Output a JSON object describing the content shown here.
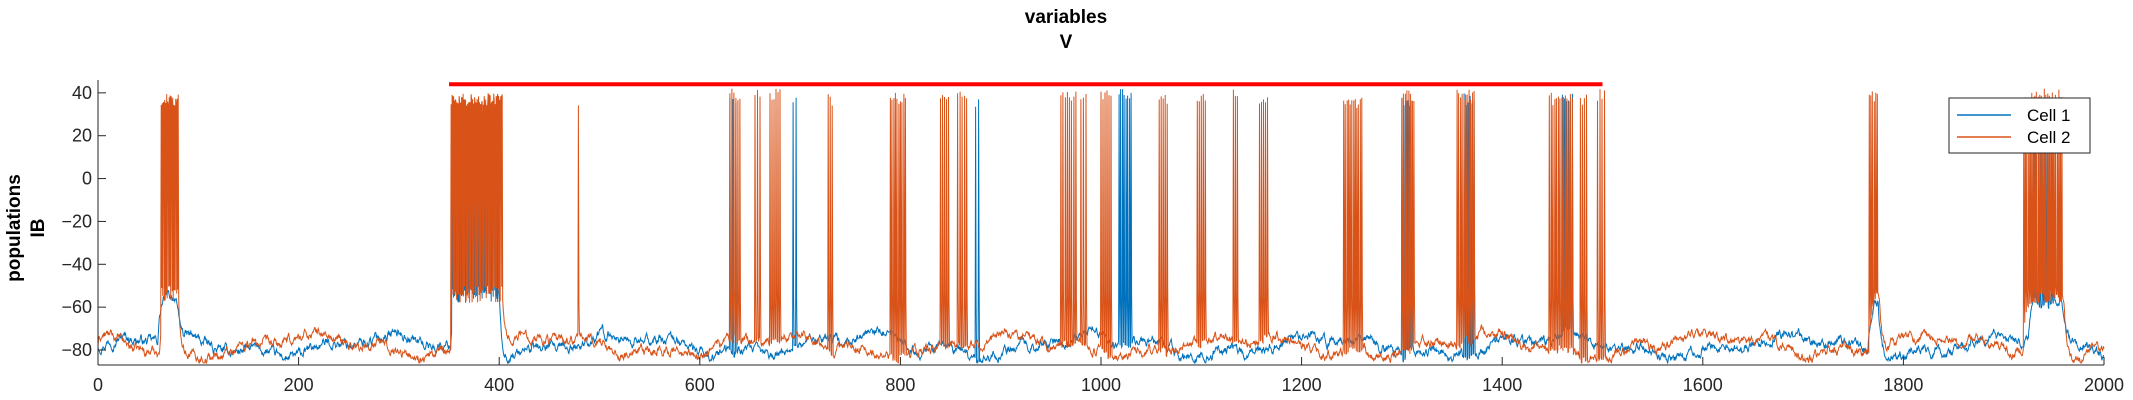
{
  "chart_data": {
    "type": "line",
    "title": "variables",
    "subtitle": "V",
    "ylabel_line1": "populations",
    "ylabel_line2": "IB",
    "xlabel": "",
    "xlim": [
      0,
      2000
    ],
    "ylim": [
      -87,
      46
    ],
    "xticks": [
      0,
      200,
      400,
      600,
      800,
      1000,
      1200,
      1400,
      1600,
      1800,
      2000
    ],
    "yticks": [
      -80,
      -60,
      -40,
      -20,
      0,
      20,
      40
    ],
    "grid": false,
    "legend_position": "top-right",
    "baseline": -78,
    "noise_amplitude": 4,
    "series": [
      {
        "name": "Cell 1",
        "color": "#0072BD",
        "depolarized_segments": [
          {
            "start": 60,
            "end": 78,
            "level": -55
          },
          {
            "start": 352,
            "end": 400,
            "level": -53
          },
          {
            "start": 1765,
            "end": 1775,
            "level": -58
          },
          {
            "start": 1925,
            "end": 1958,
            "level": -57
          }
        ],
        "spike_bursts": [
          {
            "start": 353,
            "end": 398,
            "count": 50,
            "peak": 32
          },
          {
            "start": 630,
            "end": 636,
            "count": 3,
            "peak": 40
          },
          {
            "start": 693,
            "end": 696,
            "count": 2,
            "peak": 40
          },
          {
            "start": 875,
            "end": 878,
            "count": 2,
            "peak": 38
          },
          {
            "start": 1018,
            "end": 1030,
            "count": 8,
            "peak": 42
          },
          {
            "start": 1300,
            "end": 1310,
            "count": 6,
            "peak": 40
          },
          {
            "start": 1362,
            "end": 1372,
            "count": 6,
            "peak": 40
          },
          {
            "start": 1460,
            "end": 1470,
            "count": 6,
            "peak": 40
          },
          {
            "start": 1930,
            "end": 1950,
            "count": 10,
            "peak": 38
          }
        ]
      },
      {
        "name": "Cell 2",
        "color": "#D95319",
        "depolarized_segments": [
          {
            "start": 62,
            "end": 80,
            "level": -55
          },
          {
            "start": 352,
            "end": 403,
            "level": -55
          },
          {
            "start": 1766,
            "end": 1776,
            "level": -55
          },
          {
            "start": 1920,
            "end": 1960,
            "level": -55
          }
        ],
        "spike_bursts": [
          {
            "start": 63,
            "end": 80,
            "count": 20,
            "peak": 40
          },
          {
            "start": 352,
            "end": 403,
            "count": 60,
            "peak": 40
          },
          {
            "start": 479,
            "end": 480,
            "count": 1,
            "peak": 40
          },
          {
            "start": 630,
            "end": 640,
            "count": 6,
            "peak": 42
          },
          {
            "start": 655,
            "end": 660,
            "count": 3,
            "peak": 42
          },
          {
            "start": 670,
            "end": 680,
            "count": 6,
            "peak": 42
          },
          {
            "start": 728,
            "end": 732,
            "count": 3,
            "peak": 40
          },
          {
            "start": 790,
            "end": 805,
            "count": 10,
            "peak": 40
          },
          {
            "start": 840,
            "end": 848,
            "count": 5,
            "peak": 40
          },
          {
            "start": 857,
            "end": 866,
            "count": 5,
            "peak": 42
          },
          {
            "start": 960,
            "end": 975,
            "count": 8,
            "peak": 42
          },
          {
            "start": 980,
            "end": 985,
            "count": 3,
            "peak": 40
          },
          {
            "start": 1000,
            "end": 1010,
            "count": 6,
            "peak": 42
          },
          {
            "start": 1058,
            "end": 1066,
            "count": 5,
            "peak": 40
          },
          {
            "start": 1096,
            "end": 1104,
            "count": 5,
            "peak": 40
          },
          {
            "start": 1132,
            "end": 1136,
            "count": 3,
            "peak": 42
          },
          {
            "start": 1158,
            "end": 1166,
            "count": 5,
            "peak": 40
          },
          {
            "start": 1242,
            "end": 1260,
            "count": 12,
            "peak": 38
          },
          {
            "start": 1300,
            "end": 1312,
            "count": 8,
            "peak": 42
          },
          {
            "start": 1355,
            "end": 1372,
            "count": 11,
            "peak": 42
          },
          {
            "start": 1447,
            "end": 1470,
            "count": 14,
            "peak": 40
          },
          {
            "start": 1478,
            "end": 1484,
            "count": 4,
            "peak": 40
          },
          {
            "start": 1495,
            "end": 1502,
            "count": 4,
            "peak": 42
          },
          {
            "start": 1766,
            "end": 1774,
            "count": 6,
            "peak": 42
          },
          {
            "start": 1920,
            "end": 1958,
            "count": 25,
            "peak": 42
          }
        ]
      }
    ],
    "stimulus_bar": {
      "start": 350,
      "end": 1500,
      "y": 44,
      "color": "#FF0000"
    }
  }
}
